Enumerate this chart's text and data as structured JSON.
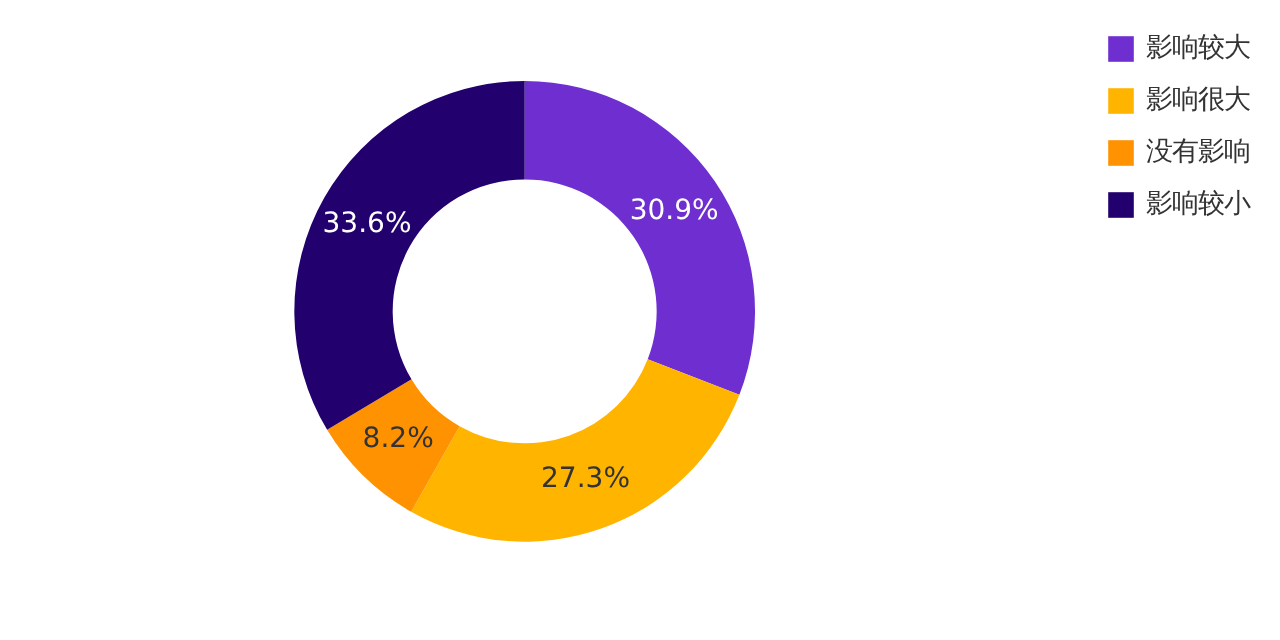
{
  "chart_data": {
    "type": "donut",
    "categories": [
      "影响较大",
      "影响很大",
      "没有影响",
      "影响较小"
    ],
    "values": [
      30.9,
      27.3,
      8.2,
      33.6
    ],
    "value_labels": [
      "30.9%",
      "27.3%",
      "8.2%",
      "33.6%"
    ],
    "colors": [
      "#6f2fd0",
      "#ffb400",
      "#ff9200",
      "#22006e"
    ],
    "legend": "top right"
  }
}
